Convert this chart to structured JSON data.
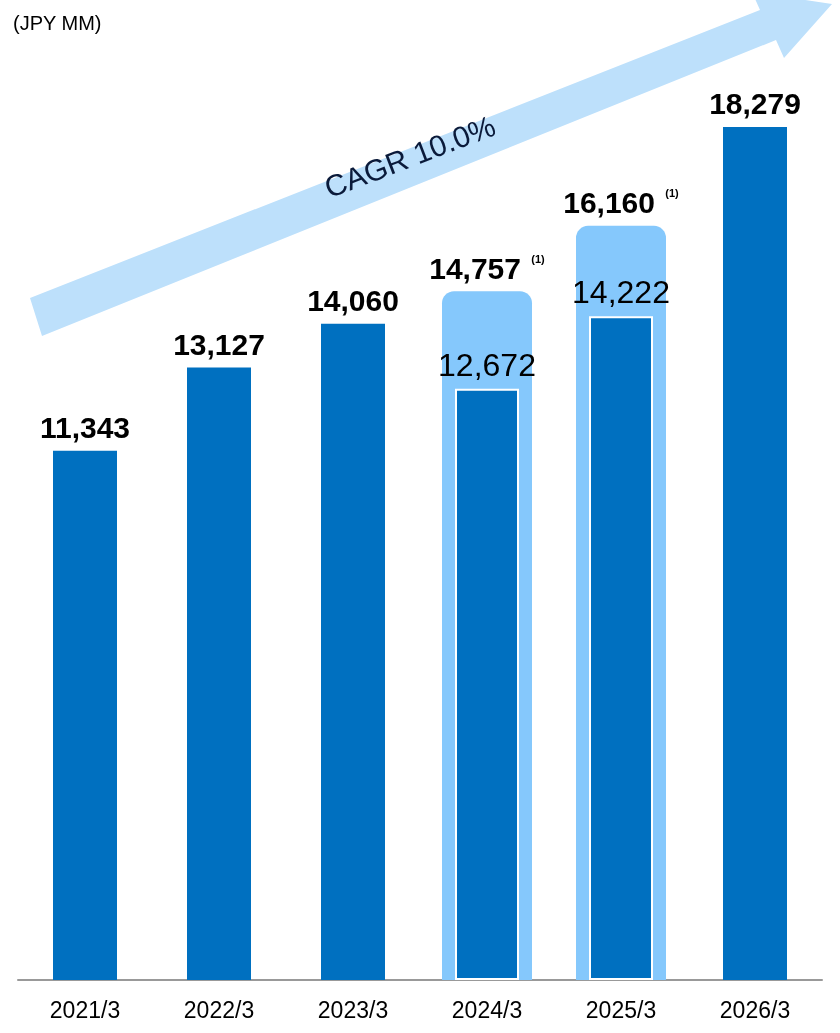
{
  "chart_data": {
    "type": "bar",
    "ylabel": "(JPY MM)",
    "categories": [
      "2021/3",
      "2022/3",
      "2023/3",
      "2024/3",
      "2025/3",
      "2026/3"
    ],
    "series": [
      {
        "color": "#85c8fc",
        "values": [
          null,
          null,
          null,
          14757,
          16160,
          null
        ],
        "value_labels": [
          null,
          null,
          null,
          "14,757 $^{(1)}$",
          "16,160 $^{(1)}$",
          null
        ]
      },
      {
        "color": "#0070c0",
        "values": [
          11343,
          13127,
          14060,
          12672,
          14222,
          18279
        ],
        "value_labels": [
          "11,343",
          "13,127",
          "14,060",
          "12,672",
          "14,222",
          "18,279"
        ]
      }
    ],
    "annotations": [
      "CAGR 10.0%"
    ]
  }
}
